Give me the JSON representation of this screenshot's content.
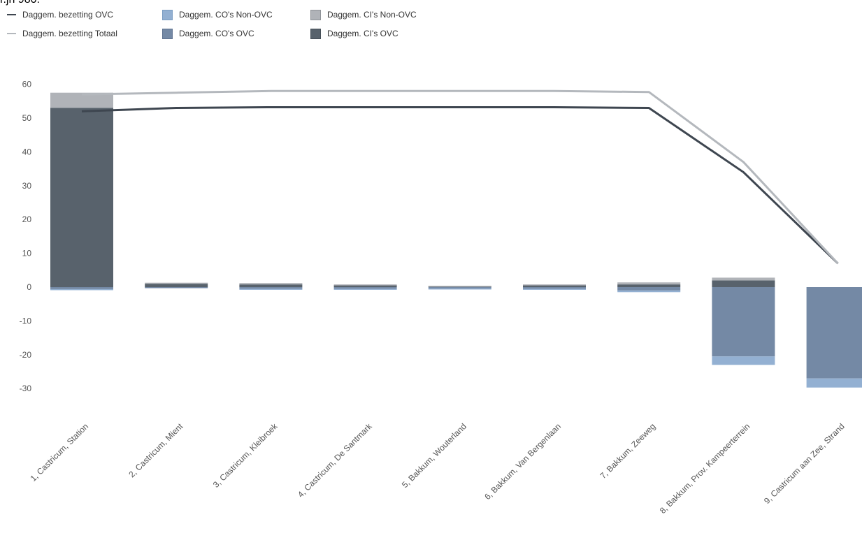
{
  "title_fragment": "r.jh 980.",
  "legend": [
    {
      "label": "Daggem. bezetting OVC",
      "kind": "line",
      "color": "#3e4650"
    },
    {
      "label": "Daggem. CO's Non-OVC",
      "kind": "box",
      "color": "#93b0d2",
      "border": "#7a9cc2"
    },
    {
      "label": "Daggem. CI's Non-OVC",
      "kind": "box",
      "color": "#b0b3b8",
      "border": "#8f9398"
    },
    {
      "label": "Daggem. bezetting Totaal",
      "kind": "line",
      "color": "#b4b8bd"
    },
    {
      "label": "Daggem. CO's OVC",
      "kind": "box",
      "color": "#7489a5",
      "border": "#5e7290"
    },
    {
      "label": "Daggem. CI's OVC",
      "kind": "box",
      "color": "#58626c",
      "border": "#464f58"
    }
  ],
  "chart_data": {
    "type": "bar",
    "stacked": true,
    "combo_lines": true,
    "ylim": [
      -35,
      65
    ],
    "yticks": [
      60,
      50,
      40,
      30,
      20,
      10,
      0,
      -10,
      -20,
      -30
    ],
    "categories": [
      "1, Castricum, Station",
      "2, Castricum, Mient",
      "3, Castricum, Kleibroek",
      "4, Castricum, De Santmark",
      "5, Bakkum, Wouterland",
      "6, Bakkum, Van Bergenlaan",
      "7, Bakkum, Zeeweg",
      "8, Bakkum, Prov. Kampeerterrein",
      "9, Castricum aan Zee, Strand"
    ],
    "bar_series": [
      {
        "name": "Daggem. CI's OVC",
        "color": "#58626c",
        "values": [
          53.0,
          1.0,
          0.8,
          0.6,
          0.3,
          0.6,
          0.8,
          2.0,
          0.0
        ]
      },
      {
        "name": "Daggem. CI's Non-OVC",
        "color": "#b0b3b8",
        "values": [
          4.5,
          0.3,
          0.4,
          0.2,
          0.1,
          0.2,
          0.6,
          0.8,
          0.0
        ]
      },
      {
        "name": "Daggem. CO's OVC",
        "color": "#7489a5",
        "values": [
          -0.6,
          -0.3,
          -0.5,
          -0.5,
          -0.4,
          -0.5,
          -1.0,
          -20.5,
          -27.0
        ]
      },
      {
        "name": "Daggem. CO's Non-OVC",
        "color": "#93b0d2",
        "values": [
          -0.2,
          0.0,
          -0.1,
          -0.1,
          -0.1,
          -0.1,
          -0.5,
          -2.5,
          -2.7
        ]
      }
    ],
    "line_series": [
      {
        "name": "Daggem. bezetting OVC",
        "color": "#3e4650",
        "values": [
          52,
          53,
          53.2,
          53.2,
          53.2,
          53.2,
          53,
          34,
          7
        ]
      },
      {
        "name": "Daggem. bezetting Totaal",
        "color": "#b4b8bd",
        "values": [
          57,
          57.5,
          58,
          58,
          58,
          58,
          57.7,
          37,
          7
        ]
      }
    ],
    "title": "",
    "xlabel": "",
    "ylabel": "",
    "grid": false
  }
}
